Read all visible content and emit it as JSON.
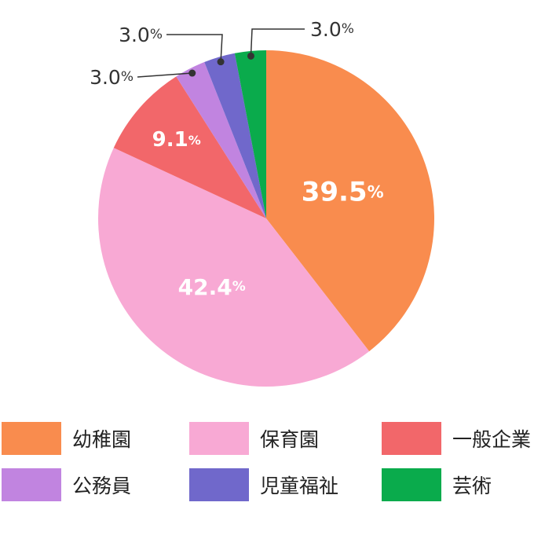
{
  "chart_data": {
    "type": "pie",
    "slices": [
      {
        "label": "幼稚園",
        "value": 39.5,
        "display": "39.5",
        "unit": "%",
        "color": "#f98c4e"
      },
      {
        "label": "保育園",
        "value": 42.4,
        "display": "42.4",
        "unit": "%",
        "color": "#f8a9d4"
      },
      {
        "label": "一般企業",
        "value": 9.1,
        "display": "9.1",
        "unit": "%",
        "color": "#f2676a"
      },
      {
        "label": "公務員",
        "value": 3.0,
        "display": "3.0",
        "unit": "%",
        "color": "#c184e0"
      },
      {
        "label": "児童福祉",
        "value": 3.0,
        "display": "3.0",
        "unit": "%",
        "color": "#7068cb"
      },
      {
        "label": "芸術",
        "value": 3.0,
        "display": "3.0",
        "unit": "%",
        "color": "#0aab4c"
      }
    ],
    "start": "12 o'clock",
    "direction": "clockwise",
    "legend_position": "bottom"
  },
  "legend": {
    "items": [
      {
        "label": "幼稚園",
        "color": "#f98c4e"
      },
      {
        "label": "保育園",
        "color": "#f8a9d4"
      },
      {
        "label": "一般企業",
        "color": "#f2676a"
      },
      {
        "label": "公務員",
        "color": "#c184e0"
      },
      {
        "label": "児童福祉",
        "color": "#7068cb"
      },
      {
        "label": "芸術",
        "color": "#0aab4c"
      }
    ]
  }
}
